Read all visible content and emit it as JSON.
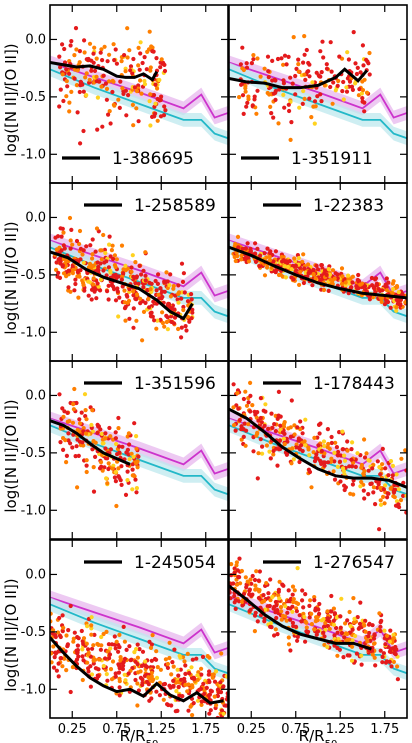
{
  "figure": {
    "xlabel": "R/R",
    "xlabel_sub": "50",
    "ylabel": "log([N II]/[O II])"
  },
  "chart_data": [
    {
      "type": "scatter",
      "name": "1-386695",
      "xlim": [
        0,
        2.0
      ],
      "ylim": [
        -1.25,
        0.3
      ],
      "xticks": [
        "0.25",
        "0.75",
        "1.25",
        "1.75"
      ],
      "yticks": [
        "0.0",
        "-0.5",
        "-1.0"
      ],
      "running_median": {
        "x": [
          0.0,
          0.15,
          0.3,
          0.45,
          0.6,
          0.75,
          0.85,
          0.95,
          1.05,
          1.15,
          1.2
        ],
        "y": [
          -0.2,
          -0.22,
          -0.24,
          -0.23,
          -0.26,
          -0.32,
          -0.33,
          -0.33,
          -0.3,
          -0.35,
          -0.28
        ]
      },
      "model_magenta": {
        "x": [
          0.0,
          0.5,
          1.0,
          1.5,
          1.7,
          1.85,
          2.0
        ],
        "y": [
          -0.2,
          -0.33,
          -0.46,
          -0.6,
          -0.48,
          -0.68,
          -0.64
        ]
      },
      "model_cyan": {
        "x": [
          0.0,
          0.5,
          1.0,
          1.5,
          1.7,
          1.85,
          2.0
        ],
        "y": [
          -0.26,
          -0.42,
          -0.56,
          -0.7,
          -0.7,
          -0.82,
          -0.86
        ]
      },
      "points": {
        "n": 220,
        "xrange": [
          0.1,
          1.3
        ],
        "center": -0.28,
        "slope": -0.05,
        "spread": 0.18
      }
    },
    {
      "type": "scatter",
      "name": "1-351911",
      "xlim": [
        0,
        2.0
      ],
      "ylim": [
        -1.25,
        0.3
      ],
      "xticks": [
        "0.25",
        "0.75",
        "1.25",
        "1.75"
      ],
      "yticks": [
        "0.0",
        "-0.5",
        "-1.0"
      ],
      "running_median": {
        "x": [
          0.0,
          0.2,
          0.4,
          0.6,
          0.8,
          1.0,
          1.2,
          1.3,
          1.45,
          1.55
        ],
        "y": [
          -0.34,
          -0.37,
          -0.38,
          -0.42,
          -0.42,
          -0.4,
          -0.33,
          -0.26,
          -0.36,
          -0.27
        ]
      },
      "model_magenta": {
        "x": [
          0.0,
          0.5,
          1.0,
          1.5,
          1.7,
          1.85,
          2.0
        ],
        "y": [
          -0.2,
          -0.33,
          -0.46,
          -0.6,
          -0.48,
          -0.68,
          -0.64
        ]
      },
      "model_cyan": {
        "x": [
          0.0,
          0.5,
          1.0,
          1.5,
          1.7,
          1.85,
          2.0
        ],
        "y": [
          -0.26,
          -0.42,
          -0.56,
          -0.7,
          -0.7,
          -0.82,
          -0.86
        ]
      },
      "points": {
        "n": 200,
        "xrange": [
          0.1,
          1.6
        ],
        "center": -0.38,
        "slope": 0.02,
        "spread": 0.15
      }
    },
    {
      "type": "scatter",
      "name": "1-258589",
      "xlim": [
        0,
        2.0
      ],
      "ylim": [
        -1.25,
        0.3
      ],
      "xticks": [
        "0.25",
        "0.75",
        "1.25",
        "1.75"
      ],
      "yticks": [
        "0.0",
        "-0.5",
        "-1.0"
      ],
      "running_median": {
        "x": [
          0.0,
          0.2,
          0.4,
          0.6,
          0.8,
          1.0,
          1.2,
          1.35,
          1.5,
          1.6
        ],
        "y": [
          -0.3,
          -0.35,
          -0.45,
          -0.52,
          -0.57,
          -0.62,
          -0.72,
          -0.82,
          -0.88,
          -0.75
        ]
      },
      "model_magenta": {
        "x": [
          0.0,
          0.5,
          1.0,
          1.5,
          1.7,
          1.85,
          2.0
        ],
        "y": [
          -0.2,
          -0.33,
          -0.46,
          -0.6,
          -0.48,
          -0.68,
          -0.64
        ]
      },
      "model_cyan": {
        "x": [
          0.0,
          0.5,
          1.0,
          1.5,
          1.7,
          1.85,
          2.0
        ],
        "y": [
          -0.26,
          -0.42,
          -0.56,
          -0.7,
          -0.7,
          -0.82,
          -0.86
        ]
      },
      "points": {
        "n": 420,
        "xrange": [
          0.05,
          1.6
        ],
        "center": -0.32,
        "slope": -0.3,
        "spread": 0.14
      }
    },
    {
      "type": "scatter",
      "name": "1-22383",
      "xlim": [
        0,
        2.0
      ],
      "ylim": [
        -1.25,
        0.3
      ],
      "xticks": [
        "0.25",
        "0.75",
        "1.25",
        "1.75"
      ],
      "yticks": [
        "0.0",
        "-0.5",
        "-1.0"
      ],
      "running_median": {
        "x": [
          0.0,
          0.25,
          0.5,
          0.75,
          1.0,
          1.25,
          1.5,
          1.75,
          2.0
        ],
        "y": [
          -0.26,
          -0.33,
          -0.42,
          -0.5,
          -0.57,
          -0.62,
          -0.66,
          -0.68,
          -0.7
        ]
      },
      "model_magenta": {
        "x": [
          0.0,
          0.5,
          1.0,
          1.5,
          1.7,
          1.85,
          2.0
        ],
        "y": [
          -0.2,
          -0.33,
          -0.46,
          -0.6,
          -0.48,
          -0.68,
          -0.64
        ]
      },
      "model_cyan": {
        "x": [
          0.0,
          0.5,
          1.0,
          1.5,
          1.7,
          1.85,
          2.0
        ],
        "y": [
          -0.26,
          -0.42,
          -0.56,
          -0.7,
          -0.7,
          -0.82,
          -0.86
        ]
      },
      "points": {
        "n": 460,
        "xrange": [
          0.05,
          2.0
        ],
        "center": -0.28,
        "slope": -0.22,
        "spread": 0.05
      }
    },
    {
      "type": "scatter",
      "name": "1-351596",
      "xlim": [
        0,
        2.0
      ],
      "ylim": [
        -1.25,
        0.3
      ],
      "xticks": [
        "0.25",
        "0.75",
        "1.25",
        "1.75"
      ],
      "yticks": [
        "0.0",
        "-0.5",
        "-1.0"
      ],
      "running_median": {
        "x": [
          0.0,
          0.15,
          0.3,
          0.45,
          0.6,
          0.75,
          0.9
        ],
        "y": [
          -0.22,
          -0.26,
          -0.33,
          -0.42,
          -0.5,
          -0.55,
          -0.6
        ]
      },
      "model_magenta": {
        "x": [
          0.0,
          0.5,
          1.0,
          1.5,
          1.7,
          1.85,
          2.0
        ],
        "y": [
          -0.2,
          -0.33,
          -0.46,
          -0.6,
          -0.48,
          -0.68,
          -0.64
        ]
      },
      "model_cyan": {
        "x": [
          0.0,
          0.5,
          1.0,
          1.5,
          1.7,
          1.85,
          2.0
        ],
        "y": [
          -0.26,
          -0.42,
          -0.56,
          -0.7,
          -0.7,
          -0.82,
          -0.86
        ]
      },
      "points": {
        "n": 200,
        "xrange": [
          0.1,
          1.0
        ],
        "center": -0.2,
        "slope": -0.45,
        "spread": 0.16
      }
    },
    {
      "type": "scatter",
      "name": "1-178443",
      "xlim": [
        0,
        2.0
      ],
      "ylim": [
        -1.25,
        0.3
      ],
      "xticks": [
        "0.25",
        "0.75",
        "1.25",
        "1.75"
      ],
      "yticks": [
        "0.0",
        "-0.5",
        "-1.0"
      ],
      "running_median": {
        "x": [
          0.0,
          0.2,
          0.4,
          0.6,
          0.8,
          1.0,
          1.2,
          1.4,
          1.6,
          1.8,
          2.0
        ],
        "y": [
          -0.12,
          -0.2,
          -0.32,
          -0.45,
          -0.55,
          -0.64,
          -0.7,
          -0.72,
          -0.72,
          -0.74,
          -0.8
        ]
      },
      "model_magenta": {
        "x": [
          0.0,
          0.5,
          1.0,
          1.5,
          1.7,
          1.85,
          2.0
        ],
        "y": [
          -0.2,
          -0.33,
          -0.46,
          -0.6,
          -0.48,
          -0.68,
          -0.64
        ]
      },
      "model_cyan": {
        "x": [
          0.0,
          0.5,
          1.0,
          1.5,
          1.7,
          1.85,
          2.0
        ],
        "y": [
          -0.26,
          -0.42,
          -0.56,
          -0.7,
          -0.7,
          -0.82,
          -0.86
        ]
      },
      "points": {
        "n": 360,
        "xrange": [
          0.05,
          2.0
        ],
        "center": -0.15,
        "slope": -0.35,
        "spread": 0.13
      }
    },
    {
      "type": "scatter",
      "name": "1-245054",
      "xlim": [
        0,
        2.0
      ],
      "ylim": [
        -1.25,
        0.3
      ],
      "xticks": [
        "0.25",
        "0.75",
        "1.25",
        "1.75"
      ],
      "yticks": [
        "0.0",
        "-0.5",
        "-1.0"
      ],
      "running_median": {
        "x": [
          0.0,
          0.15,
          0.3,
          0.45,
          0.6,
          0.75,
          0.9,
          1.05,
          1.2,
          1.35,
          1.5,
          1.65,
          1.8,
          1.95
        ],
        "y": [
          -0.55,
          -0.68,
          -0.8,
          -0.9,
          -0.97,
          -1.02,
          -1.0,
          -1.06,
          -0.95,
          -1.05,
          -1.1,
          -1.03,
          -1.12,
          -1.1
        ]
      },
      "model_magenta": {
        "x": [
          0.0,
          0.5,
          1.0,
          1.5,
          1.7,
          1.85,
          2.0
        ],
        "y": [
          -0.2,
          -0.33,
          -0.46,
          -0.6,
          -0.48,
          -0.68,
          -0.64
        ]
      },
      "model_cyan": {
        "x": [
          0.0,
          0.5,
          1.0,
          1.5,
          1.7,
          1.85,
          2.0
        ],
        "y": [
          -0.26,
          -0.42,
          -0.56,
          -0.7,
          -0.7,
          -0.82,
          -0.86
        ]
      },
      "points": {
        "n": 460,
        "xrange": [
          0.0,
          2.0
        ],
        "center": -0.6,
        "slope": -0.25,
        "spread": 0.14
      }
    },
    {
      "type": "scatter",
      "name": "1-276547",
      "xlim": [
        0,
        2.0
      ],
      "ylim": [
        -1.25,
        0.3
      ],
      "xticks": [
        "0.25",
        "0.75",
        "1.25",
        "1.75"
      ],
      "yticks": [
        "0.0",
        "-0.5",
        "-1.0"
      ],
      "running_median": {
        "x": [
          0.0,
          0.2,
          0.4,
          0.6,
          0.8,
          1.0,
          1.2,
          1.4,
          1.6
        ],
        "y": [
          -0.1,
          -0.22,
          -0.35,
          -0.45,
          -0.52,
          -0.56,
          -0.6,
          -0.6,
          -0.65
        ]
      },
      "model_magenta": {
        "x": [
          0.0,
          0.5,
          1.0,
          1.5,
          1.7,
          1.85,
          2.0
        ],
        "y": [
          -0.2,
          -0.33,
          -0.46,
          -0.6,
          -0.48,
          -0.68,
          -0.64
        ]
      },
      "model_cyan": {
        "x": [
          0.0,
          0.5,
          1.0,
          1.5,
          1.7,
          1.85,
          2.0
        ],
        "y": [
          -0.26,
          -0.42,
          -0.56,
          -0.7,
          -0.7,
          -0.82,
          -0.86
        ]
      },
      "points": {
        "n": 420,
        "xrange": [
          0.0,
          1.9
        ],
        "center": -0.12,
        "slope": -0.28,
        "spread": 0.12
      }
    }
  ],
  "colors": {
    "median": "#000000",
    "magenta": "#cc33cc",
    "magenta_band": "#e7b7ee",
    "cyan": "#22b8c8",
    "cyan_band": "#bde8ee",
    "point_red": "#e41a1c",
    "point_orange": "#ff7f00",
    "point_yellow": "#ffd21f"
  }
}
